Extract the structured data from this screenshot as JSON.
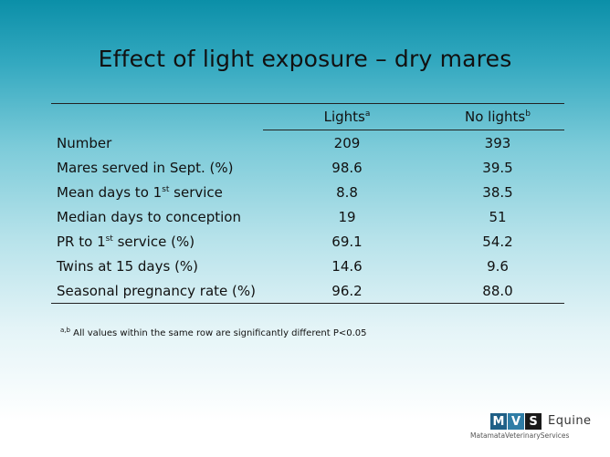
{
  "title": "Effect of light exposure – dry mares",
  "table": {
    "headers": {
      "col1": "Lights",
      "col1_sup": "a",
      "col2": "No lights",
      "col2_sup": "b"
    },
    "rows": [
      {
        "label": "Number",
        "label_sup": "",
        "label_suffix": "",
        "lights": "209",
        "no_lights": "393"
      },
      {
        "label": "Mares served in Sept. (%)",
        "label_sup": "",
        "label_suffix": "",
        "lights": "98.6",
        "no_lights": "39.5"
      },
      {
        "label": "Mean days to 1",
        "label_sup": "st",
        "label_suffix": " service",
        "lights": "8.8",
        "no_lights": "38.5"
      },
      {
        "label": "Median days to conception",
        "label_sup": "",
        "label_suffix": "",
        "lights": "19",
        "no_lights": "51"
      },
      {
        "label": "PR to 1",
        "label_sup": "st",
        "label_suffix": " service (%)",
        "lights": "69.1",
        "no_lights": "54.2"
      },
      {
        "label": "Twins at 15 days (%)",
        "label_sup": "",
        "label_suffix": "",
        "lights": "14.6",
        "no_lights": "9.6"
      },
      {
        "label": "Seasonal pregnancy rate (%)",
        "label_sup": "",
        "label_suffix": "",
        "lights": "96.2",
        "no_lights": "88.0"
      }
    ]
  },
  "footnote": {
    "sup": "a,b",
    "text": " All values within the same row  are significantly different P<0.05"
  },
  "logo": {
    "letters": [
      "M",
      "V",
      "S"
    ],
    "word": "Equine",
    "subtitle": "MatamataVeterinaryServices"
  }
}
